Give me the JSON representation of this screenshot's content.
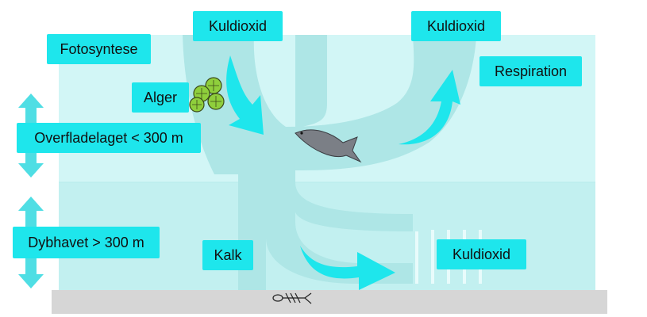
{
  "labels": {
    "fotosyntese": "Fotosyntese",
    "kuldioxid_top_left": "Kuldioxid",
    "kuldioxid_top_right": "Kuldioxid",
    "respiration": "Respiration",
    "alger": "Alger",
    "overfladelaget": "Overfladelaget < 300 m",
    "dybhavet": "Dybhavet > 300 m",
    "kalk": "Kalk",
    "kuldioxid_deep": "Kuldioxid"
  },
  "colors": {
    "label_bg": "#1ee6ec",
    "surface_water": "#d2f6f6",
    "deep_water": "#c0efef",
    "flow_band": "#a9e3e4",
    "arrow": "#1ee6ec",
    "seabed": "#d6d6d6",
    "algae": "#8fcf3c",
    "fish": "#7b7f86"
  },
  "icons": [
    "double-arrow-icon",
    "algae-icon",
    "fish-icon",
    "fish-skeleton-icon",
    "flow-arrow-icon"
  ]
}
